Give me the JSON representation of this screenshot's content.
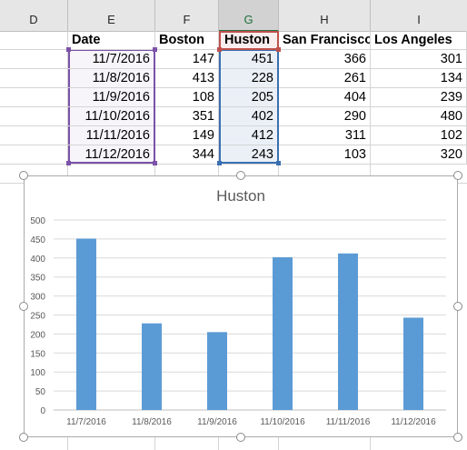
{
  "columns": [
    "D",
    "E",
    "F",
    "G",
    "H",
    "I"
  ],
  "table": {
    "headers": [
      "Date",
      "Boston",
      "Huston",
      "San Francisco",
      "Los Angeles"
    ],
    "rows": [
      [
        "11/7/2016",
        "147",
        "451",
        "366",
        "301"
      ],
      [
        "11/8/2016",
        "413",
        "228",
        "261",
        "134"
      ],
      [
        "11/9/2016",
        "108",
        "205",
        "404",
        "239"
      ],
      [
        "11/10/2016",
        "351",
        "402",
        "290",
        "480"
      ],
      [
        "11/11/2016",
        "149",
        "412",
        "311",
        "102"
      ],
      [
        "11/12/2016",
        "344",
        "243",
        "103",
        "320"
      ]
    ]
  },
  "colors": {
    "bar": "#5b9bd5",
    "range_date": "#7b52a8",
    "range_values": "#3a6fb0",
    "range_header": "#c0504d"
  },
  "chart_data": {
    "type": "bar",
    "title": "Huston",
    "categories": [
      "11/7/2016",
      "11/8/2016",
      "11/9/2016",
      "11/10/2016",
      "11/11/2016",
      "11/12/2016"
    ],
    "series": [
      {
        "name": "Huston",
        "values": [
          451,
          228,
          205,
          402,
          412,
          243
        ]
      }
    ],
    "ylim": [
      0,
      500
    ],
    "yticks": [
      "0",
      "50",
      "100",
      "150",
      "200",
      "250",
      "300",
      "350",
      "400",
      "450",
      "500"
    ],
    "grid": true,
    "legend": "none"
  }
}
